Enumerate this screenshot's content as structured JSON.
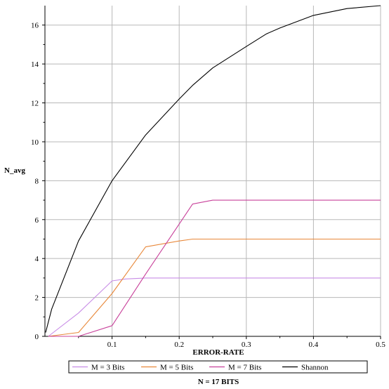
{
  "chart_data": {
    "type": "line",
    "xlabel": "ERROR-RATE",
    "ylabel": "N_avg",
    "caption": "N = 17 BITS",
    "xlim": [
      0,
      0.5
    ],
    "ylim": [
      0,
      17
    ],
    "xticks": [
      0.1,
      0.2,
      0.3,
      0.4,
      0.5
    ],
    "xtick_labels": [
      "0.1",
      "0.2",
      "0.3",
      "0.4",
      "0.5"
    ],
    "yticks": [
      0,
      2,
      4,
      6,
      8,
      10,
      12,
      14,
      16
    ],
    "ytick_labels": [
      "0",
      "2",
      "4",
      "6",
      "8",
      "10",
      "12",
      "14",
      "16"
    ],
    "grid": true,
    "legend_position": "bottom",
    "series": [
      {
        "name": "M = 3 Bits",
        "color": "#c88ce6",
        "x": [
          0.005,
          0.05,
          0.1,
          0.12,
          0.15,
          0.2,
          0.3,
          0.4,
          0.5
        ],
        "y": [
          0,
          1.2,
          2.85,
          2.95,
          3.0,
          3.0,
          3.0,
          3.0,
          3.0
        ]
      },
      {
        "name": "M = 5 Bits",
        "color": "#e8883a",
        "x": [
          0.005,
          0.05,
          0.1,
          0.15,
          0.2,
          0.22,
          0.3,
          0.4,
          0.5
        ],
        "y": [
          0,
          0.2,
          2.2,
          4.6,
          4.9,
          5.0,
          5.0,
          5.0,
          5.0
        ]
      },
      {
        "name": "M = 7 Bits",
        "color": "#c8409a",
        "x": [
          0.005,
          0.05,
          0.1,
          0.15,
          0.22,
          0.25,
          0.3,
          0.4,
          0.5
        ],
        "y": [
          0,
          0,
          0.55,
          3.2,
          6.8,
          7.0,
          7.0,
          7.0,
          7.0
        ]
      },
      {
        "name": "Shannon",
        "color": "#000000",
        "x": [
          0.001,
          0.01,
          0.05,
          0.1,
          0.15,
          0.2,
          0.22,
          0.25,
          0.3,
          0.33,
          0.35,
          0.4,
          0.45,
          0.5
        ],
        "y": [
          0.2,
          1.4,
          4.9,
          8.0,
          10.35,
          12.2,
          12.9,
          13.8,
          14.9,
          15.55,
          15.85,
          16.5,
          16.85,
          17.0
        ]
      }
    ]
  }
}
